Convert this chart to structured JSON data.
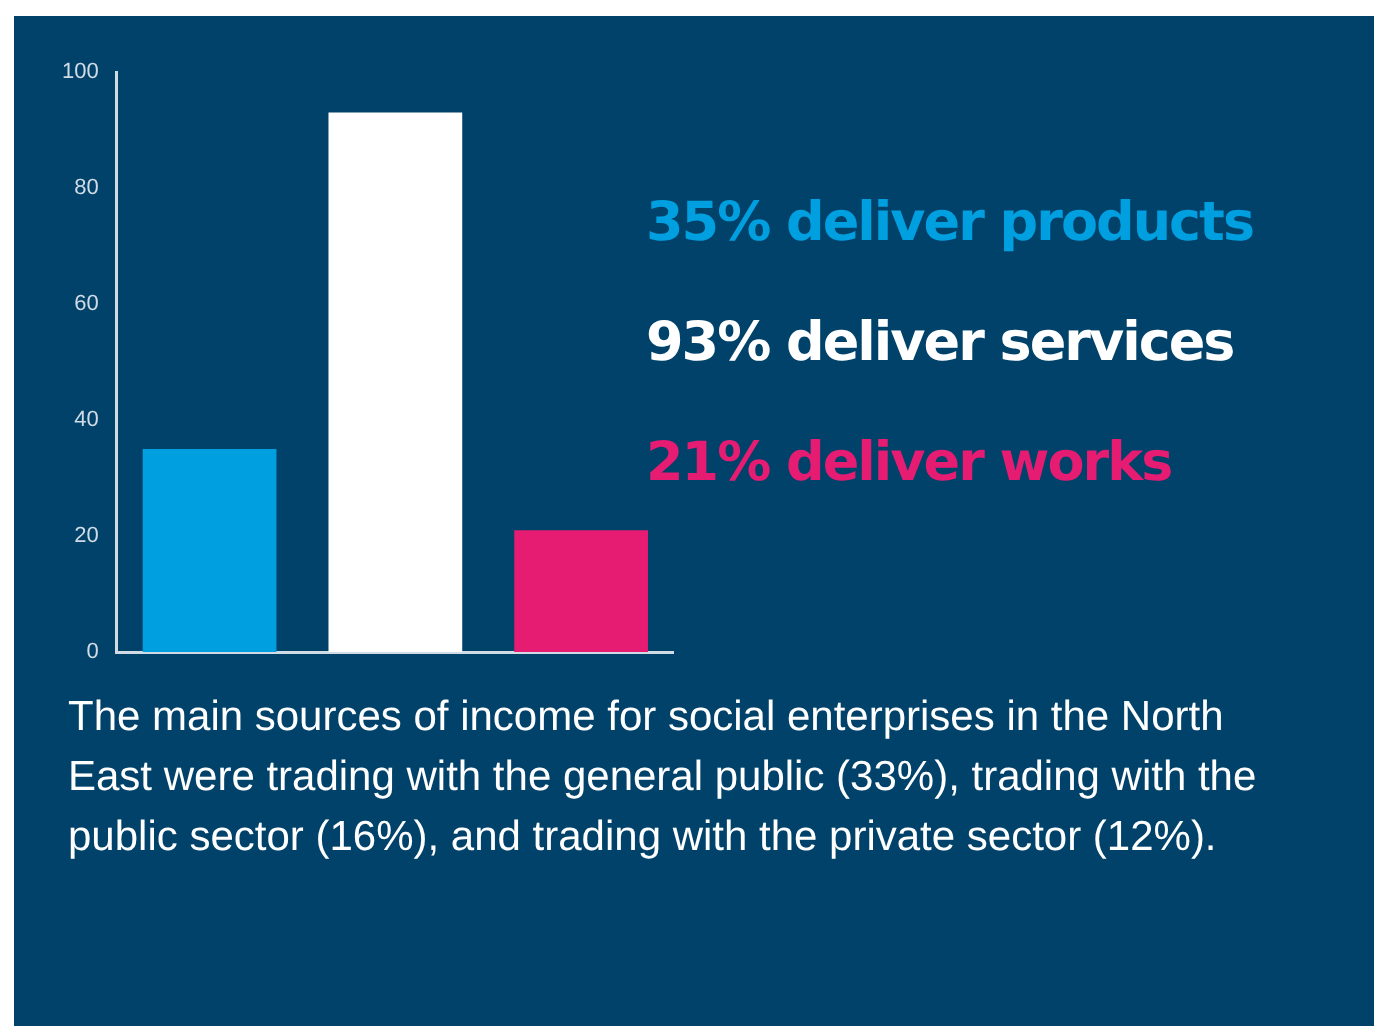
{
  "chart_data": {
    "type": "bar",
    "categories": [
      null,
      null,
      null
    ],
    "series": [
      {
        "name": "35% deliver products",
        "color": "#009fe0",
        "values": [
          35,
          null,
          null
        ]
      },
      {
        "name": "93% deliver services",
        "color": "#ffffff",
        "values": [
          null,
          93,
          null
        ]
      },
      {
        "name": "21% deliver works",
        "color": "#e61b72",
        "values": [
          null,
          null,
          21
        ]
      }
    ],
    "ylim": [
      0,
      100
    ],
    "yticks": [
      0,
      20,
      40,
      60,
      80,
      100
    ],
    "grid": false,
    "legend": "right",
    "annotations": [
      "The main sources of income for social enterprises in the North East were trading with the general public (33%), trading with the public sector (16%), and trading with the private sector (12%)."
    ]
  }
}
